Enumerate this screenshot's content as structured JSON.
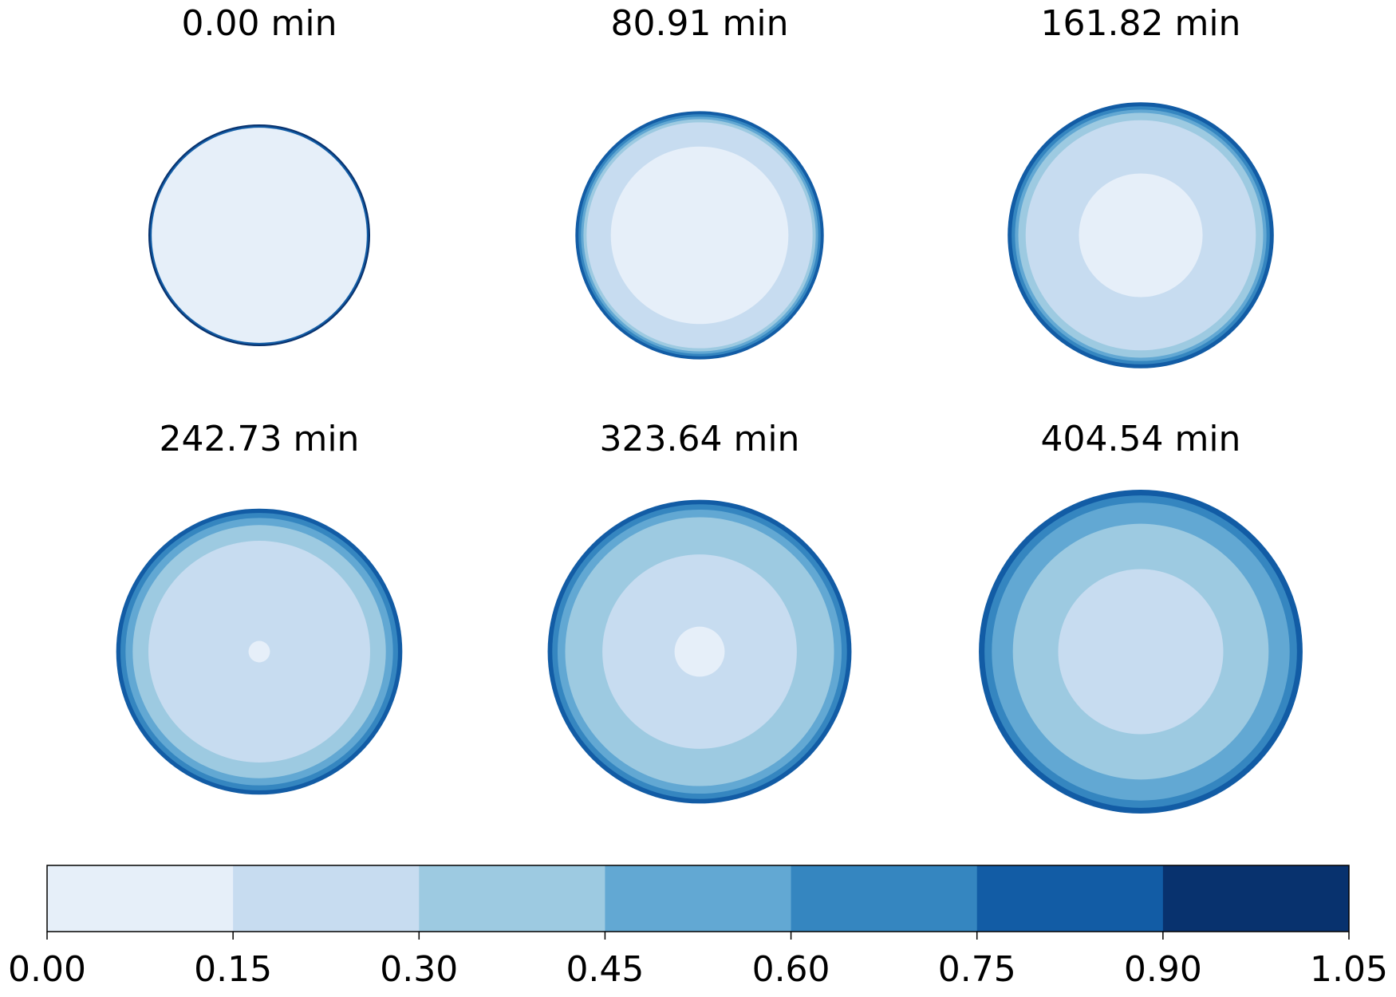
{
  "chart_data": {
    "type": "heatmap",
    "description_kind": "radial contour snapshots",
    "panels": [
      {
        "title": "0.00 min",
        "radius": 1.0,
        "rings": [
          {
            "r": 1.0,
            "level": 6
          },
          {
            "r": 0.985,
            "level": 5
          },
          {
            "r": 0.97,
            "level": 0
          }
        ]
      },
      {
        "title": "80.91 min",
        "radius": 1.12,
        "rings": [
          {
            "r": 1.0,
            "level": 5
          },
          {
            "r": 0.975,
            "level": 4
          },
          {
            "r": 0.955,
            "level": 3
          },
          {
            "r": 0.935,
            "level": 2
          },
          {
            "r": 0.91,
            "level": 1
          },
          {
            "r": 0.715,
            "level": 0
          }
        ]
      },
      {
        "title": "161.82 min",
        "radius": 1.2,
        "rings": [
          {
            "r": 1.0,
            "level": 5
          },
          {
            "r": 0.97,
            "level": 4
          },
          {
            "r": 0.945,
            "level": 3
          },
          {
            "r": 0.92,
            "level": 2
          },
          {
            "r": 0.865,
            "level": 1
          },
          {
            "r": 0.465,
            "level": 0
          }
        ]
      },
      {
        "title": "242.73 min",
        "radius": 1.29,
        "rings": [
          {
            "r": 1.0,
            "level": 5
          },
          {
            "r": 0.97,
            "level": 4
          },
          {
            "r": 0.935,
            "level": 3
          },
          {
            "r": 0.885,
            "level": 2
          },
          {
            "r": 0.775,
            "level": 1
          },
          {
            "r": 0.075,
            "level": 0
          }
        ]
      },
      {
        "title": "323.64 min",
        "radius": 1.37,
        "rings": [
          {
            "r": 1.0,
            "level": 5
          },
          {
            "r": 0.97,
            "level": 4
          },
          {
            "r": 0.935,
            "level": 3
          },
          {
            "r": 0.885,
            "level": 2
          },
          {
            "r": 0.64,
            "level": 1
          },
          {
            "r": 0.165,
            "level": 0
          }
        ]
      },
      {
        "title": "404.54 min",
        "radius": 1.46,
        "rings": [
          {
            "r": 1.0,
            "level": 5
          },
          {
            "r": 0.965,
            "level": 4
          },
          {
            "r": 0.92,
            "level": 3
          },
          {
            "r": 0.79,
            "level": 2
          },
          {
            "r": 0.51,
            "level": 1
          }
        ]
      }
    ],
    "colorbar": {
      "ticks": [
        "0.00",
        "0.15",
        "0.30",
        "0.45",
        "0.60",
        "0.75",
        "0.90",
        "1.05"
      ],
      "levels": [
        0.0,
        0.15,
        0.3,
        0.45,
        0.6,
        0.75,
        0.9,
        1.05
      ],
      "colors": [
        "#e6eff9",
        "#c7dcf0",
        "#9dcae1",
        "#62a8d3",
        "#3586c0",
        "#125ca5",
        "#08326e"
      ]
    }
  }
}
